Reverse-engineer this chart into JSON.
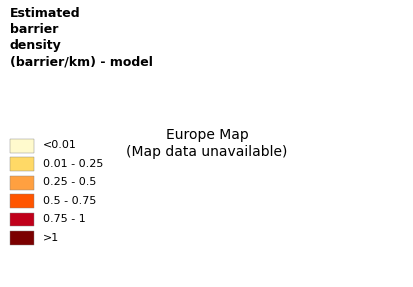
{
  "title": "Estimated\nbarrier\ndensity\n(barrier/km) - model",
  "title_fontsize": 9,
  "title_fontweight": "bold",
  "legend_labels": [
    "<0.01",
    "0.01 - 0.25",
    "0.25 - 0.5",
    "0.5 - 0.75",
    "0.75 - 1",
    ">1"
  ],
  "legend_colors": [
    "#FFFACD",
    "#FFD966",
    "#FFA040",
    "#FF5500",
    "#C0001A",
    "#7B0000"
  ],
  "background_color": "#ffffff",
  "legend_fontsize": 8,
  "figsize": [
    4.14,
    2.87
  ],
  "dpi": 100
}
